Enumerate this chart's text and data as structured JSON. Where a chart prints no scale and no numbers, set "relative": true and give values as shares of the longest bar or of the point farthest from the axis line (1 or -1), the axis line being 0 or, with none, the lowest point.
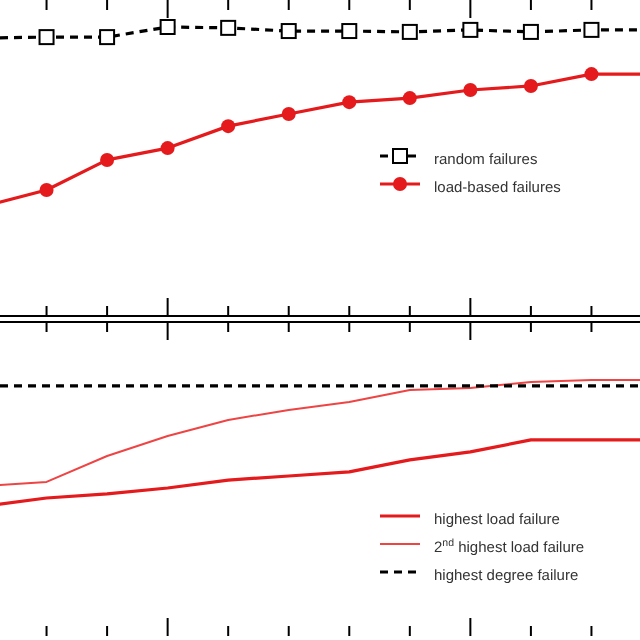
{
  "chart_data": [
    {
      "type": "line",
      "relative": true,
      "categories": [
        null,
        null,
        null,
        null,
        null,
        null,
        null,
        null,
        null,
        null,
        null,
        null
      ],
      "legend": "right",
      "series": [
        {
          "name": "random failures",
          "color": "#000000",
          "line_style": "dashed",
          "marker": "square",
          "values": [
            0.962,
            0.965,
            0.965,
            1,
            0.997,
            0.986,
            0.986,
            0.983,
            0.99,
            0.983,
            0.99,
            0.99
          ]
        },
        {
          "name": "load-based failures",
          "color": "#e41a1c",
          "line_style": "solid",
          "marker": "circle",
          "values": [
            0.381,
            0.436,
            0.54,
            0.581,
            0.657,
            0.699,
            0.74,
            0.754,
            0.782,
            0.796,
            0.837,
            0.837
          ]
        }
      ]
    },
    {
      "type": "line",
      "relative": true,
      "categories": [
        null,
        null,
        null,
        null,
        null,
        null,
        null,
        null,
        null,
        null,
        null,
        null
      ],
      "legend": "bottom right",
      "series": [
        {
          "name": "highest load failure",
          "color": "#e41a1c",
          "line_style": "solid",
          "values": [
            0.508,
            0.539,
            0.555,
            0.578,
            0.609,
            0.625,
            0.641,
            0.688,
            0.719,
            0.766,
            0.766,
            0.766
          ]
        },
        {
          "name": "2$^{nd}$ highest load failure",
          "color": "#ee4444",
          "line_style": "solid",
          "values": [
            0.586,
            0.602,
            0.703,
            0.781,
            0.844,
            0.883,
            0.914,
            0.961,
            0.969,
            0.992,
            1,
            1
          ]
        },
        {
          "name": "highest degree failure",
          "color": "#000000",
          "line_style": "dashed",
          "values": [
            0.977,
            0.977,
            0.977,
            0.977,
            0.977,
            0.977,
            0.977,
            0.977,
            0.977,
            0.977,
            0.977,
            0.977
          ]
        }
      ]
    }
  ]
}
